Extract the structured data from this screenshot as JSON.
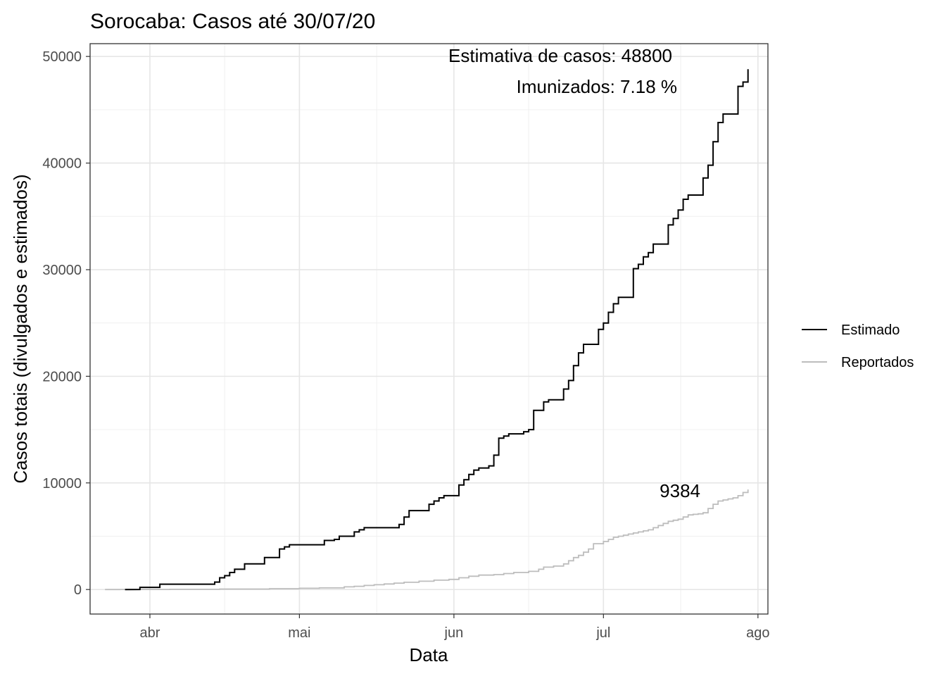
{
  "chart_data": {
    "type": "line",
    "step": true,
    "title": "Sorocaba: Casos até 30/07/20",
    "xlabel": "Data",
    "ylabel": "Casos totais (divulgados e estimados)",
    "xlim": [
      "2020-03-20",
      "2020-08-03"
    ],
    "ylim": [
      -2300,
      51200
    ],
    "x_ticks": [
      {
        "date": "2020-04-01",
        "label": "abr"
      },
      {
        "date": "2020-05-01",
        "label": "mai"
      },
      {
        "date": "2020-06-01",
        "label": "jun"
      },
      {
        "date": "2020-07-01",
        "label": "jul"
      },
      {
        "date": "2020-08-01",
        "label": "ago"
      }
    ],
    "y_ticks": [
      0,
      10000,
      20000,
      30000,
      40000,
      50000
    ],
    "y_tick_labels": [
      "0",
      "10000",
      "20000",
      "30000",
      "40000",
      "50000"
    ],
    "grid": true,
    "legend_position": "right",
    "annotations": {
      "estimate": "Estimativa de casos: 48800",
      "immunized": "Imunizados: 7.18 %",
      "reported_last": "9384"
    },
    "series": [
      {
        "name": "Estimado",
        "color": "#000000",
        "points": [
          [
            "2020-03-30",
            200
          ],
          [
            "2020-04-03",
            500
          ],
          [
            "2020-04-14",
            700
          ],
          [
            "2020-04-15",
            1100
          ],
          [
            "2020-04-16",
            1300
          ],
          [
            "2020-04-17",
            1600
          ],
          [
            "2020-04-18",
            1900
          ],
          [
            "2020-04-20",
            2400
          ],
          [
            "2020-04-24",
            3000
          ],
          [
            "2020-04-27",
            3800
          ],
          [
            "2020-04-28",
            4000
          ],
          [
            "2020-04-29",
            4200
          ],
          [
            "2020-05-06",
            4600
          ],
          [
            "2020-05-08",
            4700
          ],
          [
            "2020-05-09",
            5000
          ],
          [
            "2020-05-12",
            5400
          ],
          [
            "2020-05-13",
            5600
          ],
          [
            "2020-05-14",
            5800
          ],
          [
            "2020-05-21",
            6100
          ],
          [
            "2020-05-22",
            6800
          ],
          [
            "2020-05-23",
            7400
          ],
          [
            "2020-05-27",
            8000
          ],
          [
            "2020-05-28",
            8300
          ],
          [
            "2020-05-29",
            8600
          ],
          [
            "2020-05-30",
            8800
          ],
          [
            "2020-06-02",
            9800
          ],
          [
            "2020-06-03",
            10300
          ],
          [
            "2020-06-04",
            10800
          ],
          [
            "2020-06-05",
            11200
          ],
          [
            "2020-06-06",
            11400
          ],
          [
            "2020-06-08",
            11600
          ],
          [
            "2020-06-09",
            12600
          ],
          [
            "2020-06-10",
            14200
          ],
          [
            "2020-06-11",
            14400
          ],
          [
            "2020-06-12",
            14600
          ],
          [
            "2020-06-15",
            14800
          ],
          [
            "2020-06-16",
            15000
          ],
          [
            "2020-06-17",
            16800
          ],
          [
            "2020-06-19",
            17600
          ],
          [
            "2020-06-20",
            17800
          ],
          [
            "2020-06-23",
            18800
          ],
          [
            "2020-06-24",
            19600
          ],
          [
            "2020-06-25",
            21000
          ],
          [
            "2020-06-26",
            22200
          ],
          [
            "2020-06-27",
            23000
          ],
          [
            "2020-06-30",
            24400
          ],
          [
            "2020-07-01",
            25000
          ],
          [
            "2020-07-02",
            26000
          ],
          [
            "2020-07-03",
            26800
          ],
          [
            "2020-07-04",
            27400
          ],
          [
            "2020-07-07",
            30100
          ],
          [
            "2020-07-08",
            30500
          ],
          [
            "2020-07-09",
            31200
          ],
          [
            "2020-07-10",
            31600
          ],
          [
            "2020-07-11",
            32400
          ],
          [
            "2020-07-14",
            34200
          ],
          [
            "2020-07-15",
            34800
          ],
          [
            "2020-07-16",
            35600
          ],
          [
            "2020-07-17",
            36600
          ],
          [
            "2020-07-18",
            37000
          ],
          [
            "2020-07-21",
            38600
          ],
          [
            "2020-07-22",
            39800
          ],
          [
            "2020-07-23",
            42000
          ],
          [
            "2020-07-24",
            43800
          ],
          [
            "2020-07-25",
            44600
          ],
          [
            "2020-07-28",
            47200
          ],
          [
            "2020-07-29",
            47600
          ],
          [
            "2020-07-30",
            48800
          ]
        ]
      },
      {
        "name": "Reportados",
        "color": "#bdbdbd",
        "points": [
          [
            "2020-03-26",
            5
          ],
          [
            "2020-04-05",
            20
          ],
          [
            "2020-04-15",
            45
          ],
          [
            "2020-04-25",
            80
          ],
          [
            "2020-05-01",
            120
          ],
          [
            "2020-05-05",
            150
          ],
          [
            "2020-05-10",
            250
          ],
          [
            "2020-05-12",
            300
          ],
          [
            "2020-05-14",
            380
          ],
          [
            "2020-05-16",
            450
          ],
          [
            "2020-05-18",
            520
          ],
          [
            "2020-05-20",
            600
          ],
          [
            "2020-05-22",
            680
          ],
          [
            "2020-05-25",
            780
          ],
          [
            "2020-05-28",
            880
          ],
          [
            "2020-05-31",
            950
          ],
          [
            "2020-06-02",
            1100
          ],
          [
            "2020-06-04",
            1250
          ],
          [
            "2020-06-06",
            1350
          ],
          [
            "2020-06-09",
            1400
          ],
          [
            "2020-06-11",
            1500
          ],
          [
            "2020-06-13",
            1600
          ],
          [
            "2020-06-16",
            1700
          ],
          [
            "2020-06-18",
            1900
          ],
          [
            "2020-06-19",
            2100
          ],
          [
            "2020-06-21",
            2200
          ],
          [
            "2020-06-23",
            2400
          ],
          [
            "2020-06-24",
            2700
          ],
          [
            "2020-06-25",
            3000
          ],
          [
            "2020-06-26",
            3200
          ],
          [
            "2020-06-27",
            3500
          ],
          [
            "2020-06-28",
            3800
          ],
          [
            "2020-06-29",
            4300
          ],
          [
            "2020-07-01",
            4500
          ],
          [
            "2020-07-02",
            4700
          ],
          [
            "2020-07-03",
            4900
          ],
          [
            "2020-07-04",
            5000
          ],
          [
            "2020-07-05",
            5100
          ],
          [
            "2020-07-06",
            5200
          ],
          [
            "2020-07-07",
            5300
          ],
          [
            "2020-07-08",
            5400
          ],
          [
            "2020-07-09",
            5500
          ],
          [
            "2020-07-10",
            5600
          ],
          [
            "2020-07-11",
            5800
          ],
          [
            "2020-07-12",
            6000
          ],
          [
            "2020-07-13",
            6200
          ],
          [
            "2020-07-14",
            6400
          ],
          [
            "2020-07-15",
            6500
          ],
          [
            "2020-07-16",
            6600
          ],
          [
            "2020-07-17",
            6800
          ],
          [
            "2020-07-18",
            7000
          ],
          [
            "2020-07-19",
            7050
          ],
          [
            "2020-07-20",
            7100
          ],
          [
            "2020-07-21",
            7200
          ],
          [
            "2020-07-22",
            7600
          ],
          [
            "2020-07-23",
            8000
          ],
          [
            "2020-07-24",
            8300
          ],
          [
            "2020-07-25",
            8400
          ],
          [
            "2020-07-26",
            8500
          ],
          [
            "2020-07-27",
            8600
          ],
          [
            "2020-07-28",
            8800
          ],
          [
            "2020-07-29",
            9100
          ],
          [
            "2020-07-30",
            9384
          ]
        ]
      }
    ]
  }
}
